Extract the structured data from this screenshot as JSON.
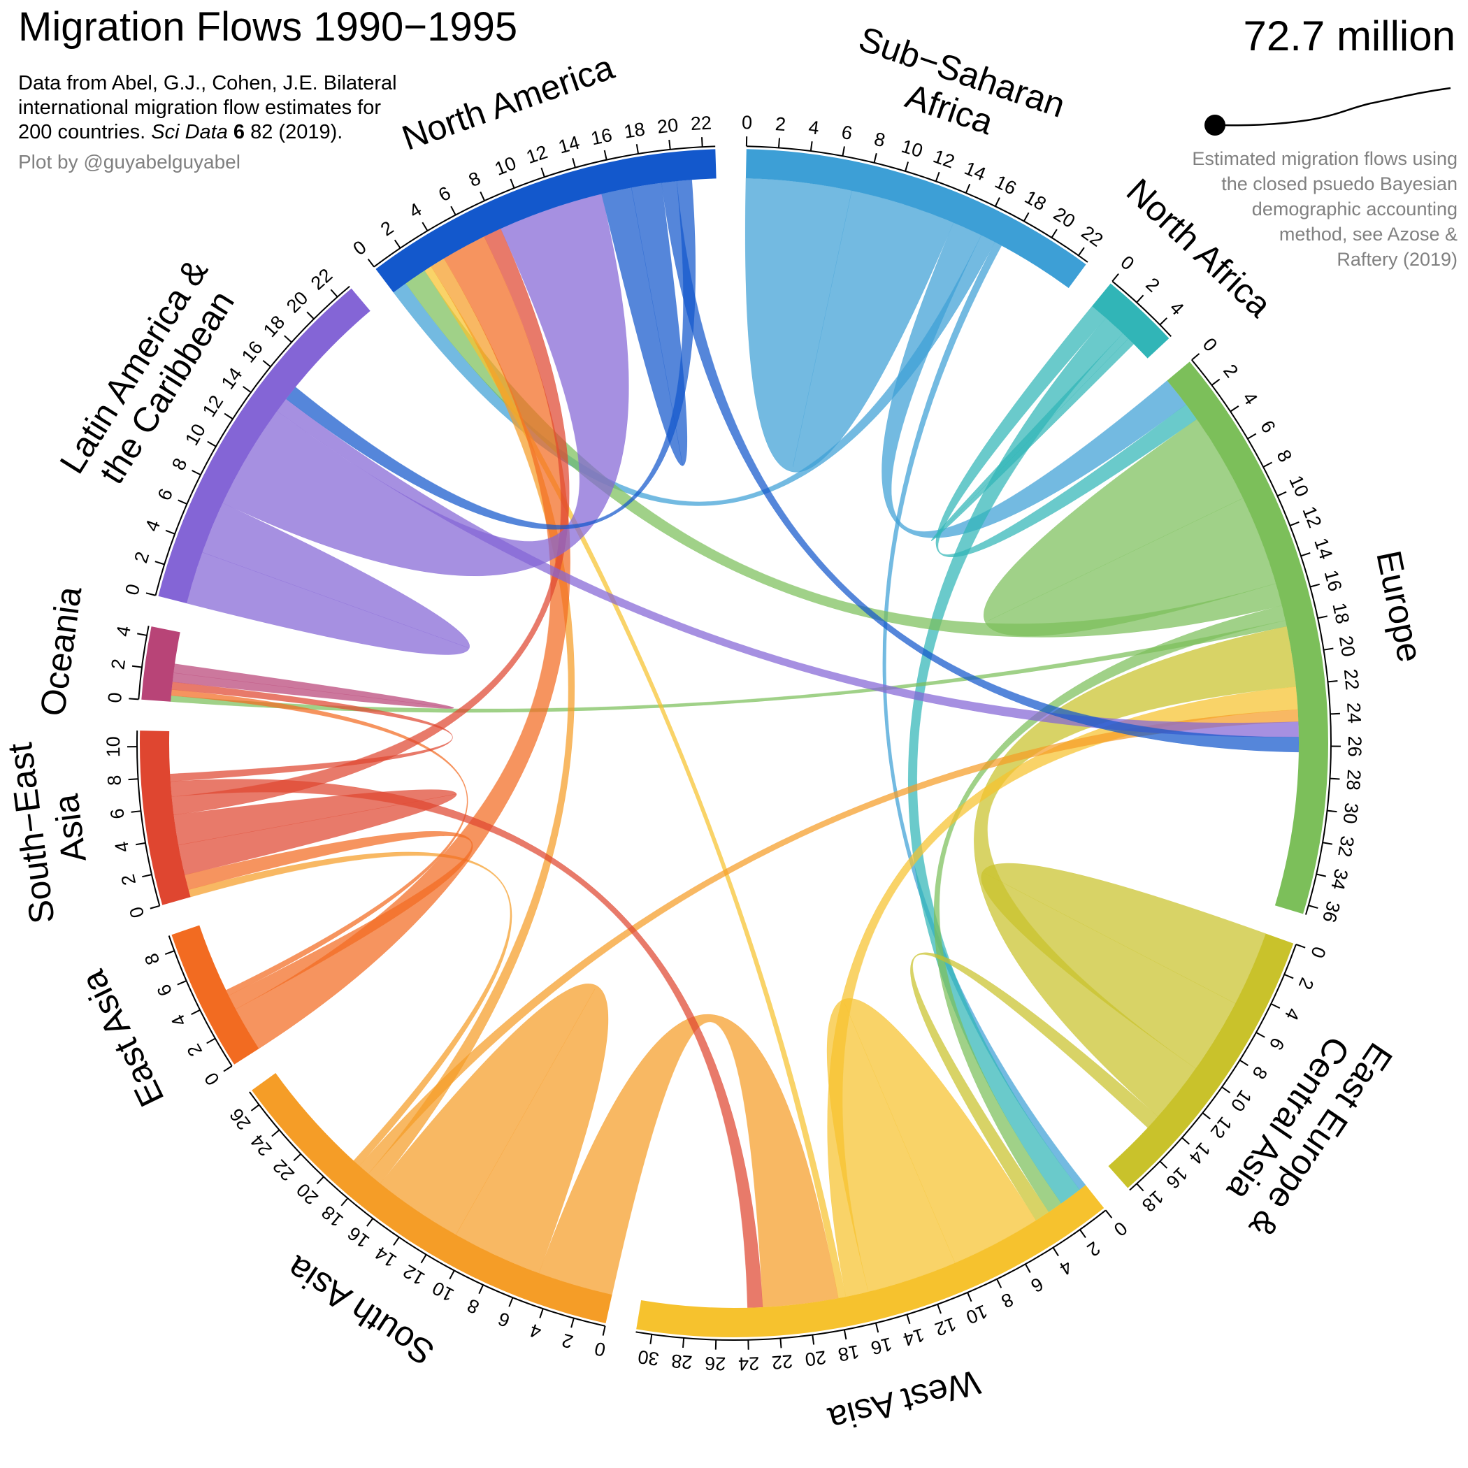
{
  "chart_data": {
    "type": "chord",
    "title": "Migration Flows 1990−1995",
    "subtitle": [
      "Data from Abel, G.J., Cohen, J.E. Bilateral",
      "international migration flow estimates for"
    ],
    "citation": [
      "200 countries.",
      "Sci Data",
      "6",
      "82 (2019)."
    ],
    "credit": "Plot by @guyabelguyabel",
    "total": "72.7 million",
    "note": [
      "Estimated migration flows using",
      "the closed psuedo Bayesian",
      "demographic accounting",
      "method, see Azose &",
      "Raftery (2019)"
    ],
    "regions": [
      {
        "name": [
          "Sub−Saharan",
          "Africa"
        ],
        "color": "#3d9fd6",
        "total": 22.7,
        "ticks": [
          0,
          2,
          4,
          6,
          8,
          10,
          12,
          14,
          16,
          18,
          20,
          22
        ]
      },
      {
        "name": [
          "North Africa"
        ],
        "color": "#31b5b7",
        "total": 5,
        "ticks": [
          0,
          2,
          4
        ]
      },
      {
        "name": [
          "Europe"
        ],
        "color": "#7cbf5a",
        "total": 36.6,
        "ticks": [
          0,
          2,
          4,
          6,
          8,
          10,
          12,
          14,
          16,
          18,
          20,
          22,
          24,
          26,
          28,
          30,
          32,
          34,
          36
        ]
      },
      {
        "name": [
          "East Europe &",
          "Central Asia"
        ],
        "color": "#c9c22b",
        "total": 18.6,
        "ticks": [
          0,
          2,
          4,
          6,
          8,
          10,
          12,
          14,
          16,
          18
        ]
      },
      {
        "name": [
          "West Asia"
        ],
        "color": "#f6c22e",
        "total": 31,
        "ticks": [
          0,
          2,
          4,
          6,
          8,
          10,
          12,
          14,
          16,
          18,
          20,
          22,
          24,
          26,
          28,
          30
        ]
      },
      {
        "name": [
          "South Asia"
        ],
        "color": "#f59d27",
        "total": 27,
        "ticks": [
          0,
          2,
          4,
          6,
          8,
          10,
          12,
          14,
          16,
          18,
          20,
          22,
          24,
          26
        ]
      },
      {
        "name": [
          "East Asia"
        ],
        "color": "#f26b21",
        "total": 9,
        "ticks": [
          0,
          2,
          4,
          6,
          8
        ]
      },
      {
        "name": [
          "South−East",
          "Asia"
        ],
        "color": "#df4630",
        "total": 11,
        "ticks": [
          0,
          2,
          4,
          6,
          8,
          10
        ]
      },
      {
        "name": [
          "Oceania"
        ],
        "color": "#b84477",
        "total": 4.6,
        "ticks": [
          0,
          2,
          4
        ]
      },
      {
        "name": [
          "Latin America &",
          "the Caribbean"
        ],
        "color": "#8465d6",
        "total": 23,
        "ticks": [
          0,
          2,
          4,
          6,
          8,
          10,
          12,
          14,
          16,
          18,
          20,
          22
        ]
      },
      {
        "name": [
          "North America"
        ],
        "color": "#1358cc",
        "total": 22.8,
        "ticks": [
          0,
          2,
          4,
          6,
          8,
          10,
          12,
          14,
          16,
          18,
          20,
          22
        ]
      }
    ],
    "flows": [
      {
        "from": 0,
        "to": 0,
        "value": 7
      },
      {
        "from": 0,
        "to": 2,
        "value": 2
      },
      {
        "from": 0,
        "to": 10,
        "value": 1
      },
      {
        "from": 0,
        "to": 4,
        "value": 0.5
      },
      {
        "from": 1,
        "to": 2,
        "value": 1.2
      },
      {
        "from": 1,
        "to": 4,
        "value": 1.5
      },
      {
        "from": 1,
        "to": 1,
        "value": 0.5
      },
      {
        "from": 2,
        "to": 2,
        "value": 6
      },
      {
        "from": 2,
        "to": 10,
        "value": 1.5
      },
      {
        "from": 2,
        "to": 4,
        "value": 1
      },
      {
        "from": 2,
        "to": 8,
        "value": 0.4
      },
      {
        "from": 3,
        "to": 3,
        "value": 5
      },
      {
        "from": 3,
        "to": 2,
        "value": 4
      },
      {
        "from": 3,
        "to": 4,
        "value": 1
      },
      {
        "from": 4,
        "to": 4,
        "value": 6
      },
      {
        "from": 4,
        "to": 2,
        "value": 1.5
      },
      {
        "from": 4,
        "to": 10,
        "value": 0.5
      },
      {
        "from": 5,
        "to": 4,
        "value": 5
      },
      {
        "from": 5,
        "to": 5,
        "value": 6
      },
      {
        "from": 5,
        "to": 10,
        "value": 1
      },
      {
        "from": 5,
        "to": 2,
        "value": 0.8
      },
      {
        "from": 5,
        "to": 7,
        "value": 0.5
      },
      {
        "from": 6,
        "to": 10,
        "value": 3
      },
      {
        "from": 6,
        "to": 7,
        "value": 1
      },
      {
        "from": 6,
        "to": 8,
        "value": 0.4
      },
      {
        "from": 7,
        "to": 7,
        "value": 2
      },
      {
        "from": 7,
        "to": 10,
        "value": 1.2
      },
      {
        "from": 7,
        "to": 4,
        "value": 1
      },
      {
        "from": 7,
        "to": 8,
        "value": 0.5
      },
      {
        "from": 8,
        "to": 8,
        "value": 0.6
      },
      {
        "from": 9,
        "to": 9,
        "value": 3.5
      },
      {
        "from": 9,
        "to": 10,
        "value": 7
      },
      {
        "from": 9,
        "to": 2,
        "value": 1
      },
      {
        "from": 10,
        "to": 10,
        "value": 2
      },
      {
        "from": 10,
        "to": 2,
        "value": 1
      },
      {
        "from": 10,
        "to": 9,
        "value": 1
      }
    ]
  }
}
